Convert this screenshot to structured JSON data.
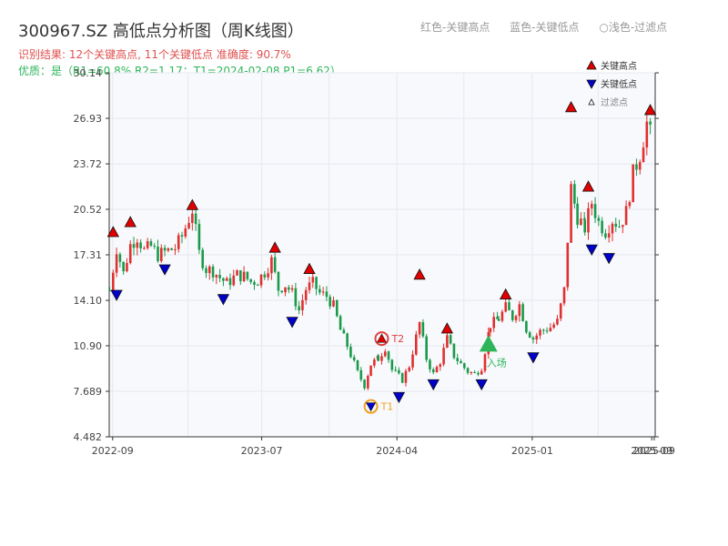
{
  "title": "300967.SZ 高低点分析图（周K线图）",
  "top_legend": {
    "high": "红色-关键高点",
    "low": "蓝色-关键低点",
    "filtered": "○浅色-过滤点"
  },
  "subtitle": {
    "line1": "识别结果: 12个关键高点, 11个关键低点  准确度: 90.7%",
    "line2": "优质：是（R1=60.8%  R2=1.17；T1=2024-02-08 P1=6.62）"
  },
  "chart_data": {
    "type": "candlestick",
    "y_ticks": [
      "4.482",
      "7.689",
      "10.90",
      "14.10",
      "17.31",
      "20.52",
      "23.72",
      "26.93",
      "30.14"
    ],
    "ylim": [
      4.482,
      30.14
    ],
    "x_ticks": [
      {
        "label": "2022-09",
        "date": "2022-09-01"
      },
      {
        "label": "2023-07",
        "date": "2023-07-01"
      },
      {
        "label": "2024-04",
        "date": "2024-04-01"
      },
      {
        "label": "2025-01",
        "date": "2025-01-01"
      },
      {
        "label": "2025-09",
        "date": "2025-09-01"
      },
      {
        "label": "2025-09",
        "date": "2025-09-06"
      }
    ],
    "xlim": [
      "2022-08-25",
      "2025-09-08"
    ],
    "legend": {
      "items": [
        {
          "label": "关键高点",
          "marker": "up-triangle",
          "color": "#e00000"
        },
        {
          "label": "关键低点",
          "marker": "down-triangle",
          "color": "#0000cc"
        },
        {
          "label": "过滤点",
          "marker": "small-up-triangle",
          "color": "#ffffff"
        }
      ],
      "position": "top-right"
    },
    "series_close": [
      [
        "2022-08-26",
        14.8
      ],
      [
        "2022-09-09",
        17.8
      ],
      [
        "2022-09-23",
        16.0
      ],
      [
        "2022-10-07",
        18.0
      ],
      [
        "2022-10-21",
        18.6
      ],
      [
        "2022-11-04",
        17.6
      ],
      [
        "2022-11-18",
        17.9
      ],
      [
        "2022-12-02",
        17.3
      ],
      [
        "2022-12-16",
        17.5
      ],
      [
        "2023-01-06",
        17.8
      ],
      [
        "2023-01-20",
        18.6
      ],
      [
        "2023-02-10",
        20.5
      ],
      [
        "2023-02-24",
        17.4
      ],
      [
        "2023-03-10",
        16.3
      ],
      [
        "2023-03-24",
        16.2
      ],
      [
        "2023-04-07",
        15.7
      ],
      [
        "2023-04-21",
        15.3
      ],
      [
        "2023-05-12",
        15.9
      ],
      [
        "2023-05-26",
        15.8
      ],
      [
        "2023-06-09",
        15.4
      ],
      [
        "2023-06-23",
        15.5
      ],
      [
        "2023-07-07",
        16.1
      ],
      [
        "2023-07-21",
        16.9
      ],
      [
        "2023-08-04",
        14.9
      ],
      [
        "2023-08-18",
        15.2
      ],
      [
        "2023-09-01",
        14.6
      ],
      [
        "2023-09-15",
        13.4
      ],
      [
        "2023-09-29",
        14.9
      ],
      [
        "2023-10-13",
        15.3
      ],
      [
        "2023-10-27",
        14.6
      ],
      [
        "2023-11-10",
        14.4
      ],
      [
        "2023-11-24",
        13.7
      ],
      [
        "2023-12-08",
        12.0
      ],
      [
        "2023-12-22",
        10.9
      ],
      [
        "2024-01-12",
        9.0
      ],
      [
        "2024-01-26",
        8.1
      ],
      [
        "2024-02-08",
        9.6
      ],
      [
        "2024-02-23",
        10.0
      ],
      [
        "2024-03-08",
        10.8
      ],
      [
        "2024-03-22",
        9.2
      ],
      [
        "2024-04-12",
        8.5
      ],
      [
        "2024-04-26",
        9.5
      ],
      [
        "2024-05-17",
        12.5
      ],
      [
        "2024-05-31",
        10.0
      ],
      [
        "2024-06-14",
        8.9
      ],
      [
        "2024-06-28",
        9.8
      ],
      [
        "2024-07-12",
        11.4
      ],
      [
        "2024-07-26",
        10.2
      ],
      [
        "2024-08-09",
        9.6
      ],
      [
        "2024-08-23",
        9.1
      ],
      [
        "2024-09-06",
        8.9
      ],
      [
        "2024-09-20",
        9.4
      ],
      [
        "2024-10-08",
        12.4
      ],
      [
        "2024-10-25",
        12.8
      ],
      [
        "2024-11-08",
        13.6
      ],
      [
        "2024-11-22",
        12.9
      ],
      [
        "2024-12-06",
        13.8
      ],
      [
        "2024-12-20",
        12.1
      ],
      [
        "2025-01-03",
        11.4
      ],
      [
        "2025-01-17",
        11.9
      ],
      [
        "2025-02-07",
        12.2
      ],
      [
        "2025-02-21",
        12.6
      ],
      [
        "2025-03-07",
        14.8
      ],
      [
        "2025-03-21",
        22.0
      ],
      [
        "2025-04-03",
        20.0
      ],
      [
        "2025-04-18",
        19.2
      ],
      [
        "2025-05-02",
        21.0
      ],
      [
        "2025-05-16",
        19.6
      ],
      [
        "2025-05-30",
        19.0
      ],
      [
        "2025-06-13",
        19.8
      ],
      [
        "2025-06-27",
        19.4
      ],
      [
        "2025-07-11",
        20.3
      ],
      [
        "2025-07-25",
        23.0
      ],
      [
        "2025-08-08",
        24.4
      ],
      [
        "2025-08-22",
        26.6
      ],
      [
        "2025-09-05",
        25.0
      ]
    ],
    "key_highs": [
      {
        "date": "2022-09-02",
        "price": 18.4
      },
      {
        "date": "2022-10-07",
        "price": 19.1
      },
      {
        "date": "2023-02-10",
        "price": 20.3
      },
      {
        "date": "2023-07-28",
        "price": 17.3
      },
      {
        "date": "2023-10-06",
        "price": 15.8
      },
      {
        "date": "2024-05-17",
        "price": 15.4
      },
      {
        "date": "2024-07-12",
        "price": 11.6
      },
      {
        "date": "2024-11-08",
        "price": 14.0
      },
      {
        "date": "2025-03-21",
        "price": 27.2
      },
      {
        "date": "2025-04-25",
        "price": 21.6
      },
      {
        "date": "2025-08-29",
        "price": 27.0
      }
    ],
    "key_lows": [
      {
        "date": "2022-09-09",
        "price": 15.0
      },
      {
        "date": "2022-12-16",
        "price": 16.8
      },
      {
        "date": "2023-04-14",
        "price": 14.7
      },
      {
        "date": "2023-09-01",
        "price": 13.1
      },
      {
        "date": "2024-04-05",
        "price": 7.8
      },
      {
        "date": "2024-06-14",
        "price": 8.7
      },
      {
        "date": "2024-09-20",
        "price": 8.7
      },
      {
        "date": "2025-01-03",
        "price": 10.6
      },
      {
        "date": "2025-05-02",
        "price": 18.2
      },
      {
        "date": "2025-06-06",
        "price": 17.6
      }
    ],
    "annotations": [
      {
        "label": "T1",
        "date": "2024-02-08",
        "price": 6.62,
        "kind": "low-circle"
      },
      {
        "label": "T2",
        "date": "2024-03-01",
        "price": 11.4,
        "kind": "high-circle"
      },
      {
        "label": "入场",
        "date": "2024-10-04",
        "price": 11.0,
        "kind": "entry"
      }
    ]
  }
}
